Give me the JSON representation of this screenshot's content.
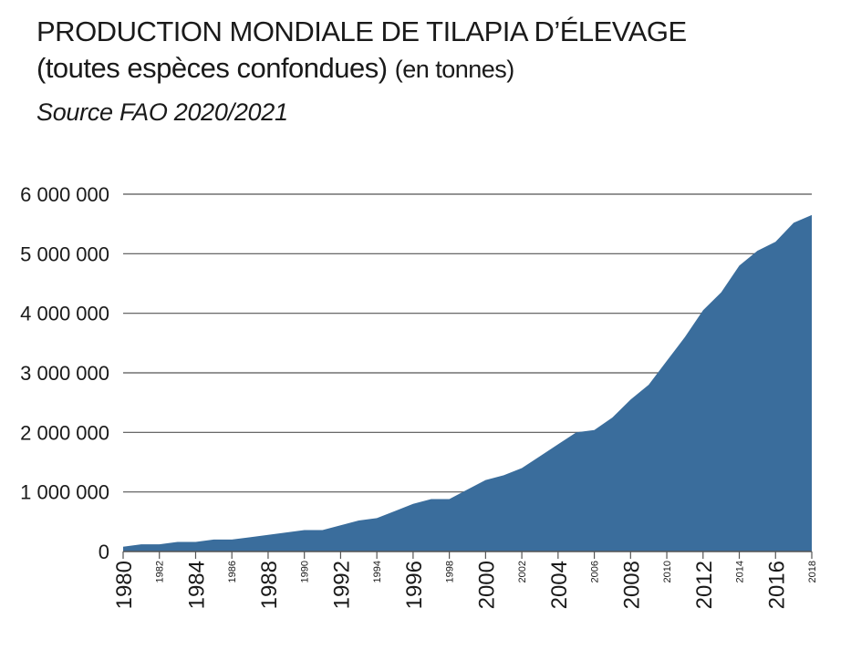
{
  "header": {
    "title": "PRODUCTION MONDIALE DE TILAPIA D’ÉLEVAGE",
    "subtitle": "(toutes espèces confondues)",
    "unit": "(en tonnes)",
    "source": "Source FAO 2020/2021"
  },
  "colors": {
    "area": "#3a6d9c",
    "grid": "#555555",
    "axis": "#555555"
  },
  "chart_data": {
    "type": "area",
    "title": "PRODUCTION MONDIALE DE TILAPIA D’ÉLEVAGE (toutes espèces confondues) (en tonnes)",
    "xlabel": "",
    "ylabel": "",
    "ylim": [
      0,
      6000000
    ],
    "yticks": [
      0,
      1000000,
      2000000,
      3000000,
      4000000,
      5000000,
      6000000
    ],
    "ytick_labels": [
      "0",
      "1 000 000",
      "2 000 000",
      "3 000 000",
      "4 000 000",
      "5 000 000",
      "6 000 000"
    ],
    "xlim": [
      1980,
      2018
    ],
    "xticks": [
      1980,
      1982,
      1984,
      1986,
      1988,
      1990,
      1992,
      1994,
      1996,
      1998,
      2000,
      2002,
      2004,
      2006,
      2008,
      2010,
      2012,
      2014,
      2016,
      2018
    ],
    "xtick_labels": [
      "1980",
      "1982",
      "1984",
      "1986",
      "1988",
      "1990",
      "1992",
      "1994",
      "1996",
      "1998",
      "2000",
      "2002",
      "2004",
      "2006",
      "2008",
      "2010",
      "2012",
      "2014",
      "2016",
      "2018"
    ],
    "xtick_large": [
      1980,
      1984,
      1988,
      1992,
      1996,
      2000,
      2004,
      2008,
      2012,
      2016
    ],
    "grid": true,
    "x": [
      1980,
      1981,
      1982,
      1983,
      1984,
      1985,
      1986,
      1987,
      1988,
      1989,
      1990,
      1991,
      1992,
      1993,
      1994,
      1995,
      1996,
      1997,
      1998,
      1999,
      2000,
      2001,
      2002,
      2003,
      2004,
      2005,
      2006,
      2007,
      2008,
      2009,
      2010,
      2011,
      2012,
      2013,
      2014,
      2015,
      2016,
      2017,
      2018
    ],
    "series": [
      {
        "values": [
          80000,
          120000,
          120000,
          160000,
          160000,
          200000,
          200000,
          240000,
          280000,
          320000,
          360000,
          360000,
          440000,
          520000,
          560000,
          680000,
          800000,
          880000,
          880000,
          1040000,
          1200000,
          1280000,
          1400000,
          1600000,
          1800000,
          2000000,
          2040000,
          2250000,
          2550000,
          2800000,
          3200000,
          3600000,
          4050000,
          4350000,
          4800000,
          5050000,
          5200000,
          5520000,
          5650000
        ]
      }
    ]
  }
}
